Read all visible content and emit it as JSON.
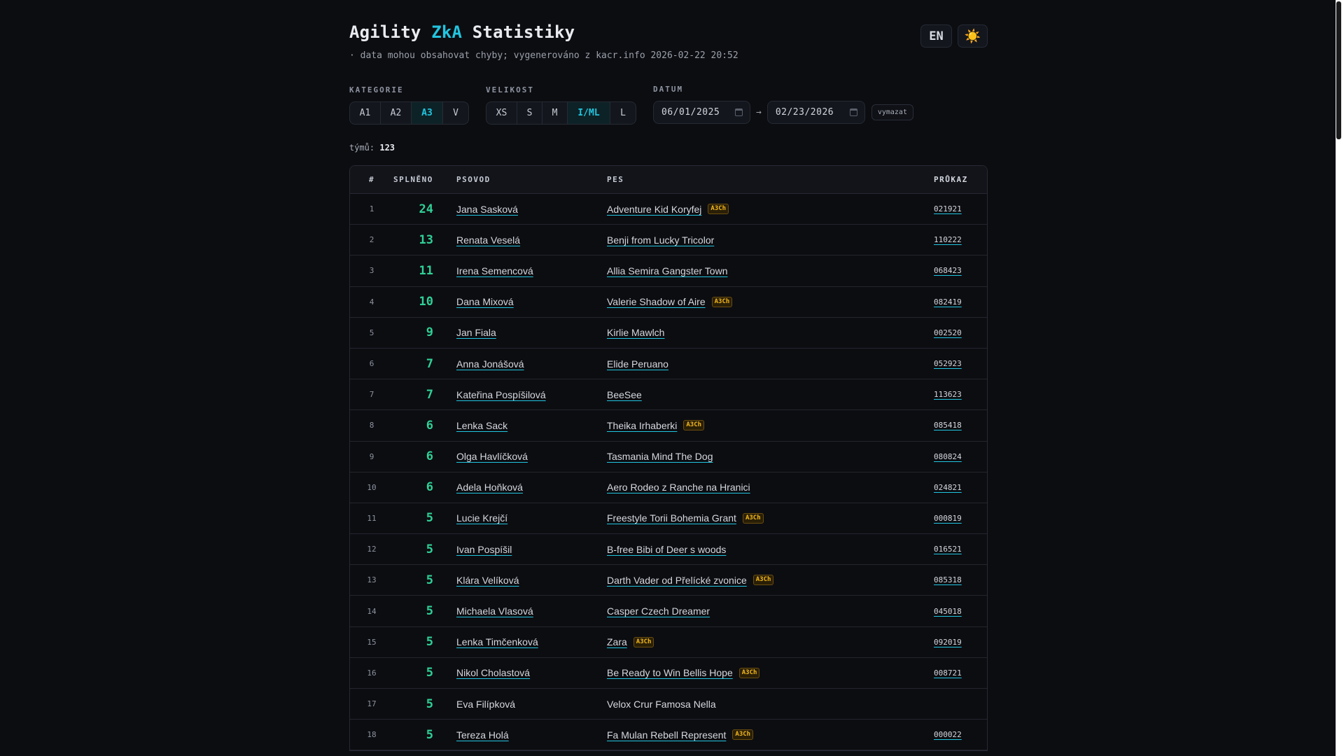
{
  "header": {
    "title_part1": "Agility ",
    "title_accent": "ZkA",
    "title_part2": " Statistiky",
    "subtitle": "· data mohou obsahovat chyby; vygenerováno z kacr.info 2026-02-22 20:52",
    "lang_button": "EN",
    "theme_icon": "☀️"
  },
  "filters": {
    "category": {
      "label": "KATEGORIE",
      "options": [
        "A1",
        "A2",
        "A3",
        "V"
      ],
      "selected": "A3"
    },
    "size": {
      "label": "VELIKOST",
      "options": [
        "XS",
        "S",
        "M",
        "I/ML",
        "L"
      ],
      "selected": "I/ML"
    },
    "date": {
      "label": "DATUM",
      "from": "06/01/2025",
      "arrow": "→",
      "to": "02/23/2026",
      "clear_label": "vymazat"
    }
  },
  "count": {
    "label": "týmů:",
    "value": "123"
  },
  "table": {
    "columns": [
      "#",
      "SPLNĚNO",
      "PSOVOD",
      "PES",
      "PRŮKAZ"
    ],
    "rows": [
      {
        "rank": "1",
        "score": "24",
        "handler": "Jana Sasková",
        "dog": "Adventure Kid Koryfej",
        "badge": "A3Ch",
        "proof": "021921",
        "linked": true
      },
      {
        "rank": "2",
        "score": "13",
        "handler": "Renata Veselá",
        "dog": "Benji from Lucky Tricolor",
        "badge": "",
        "proof": "110222",
        "linked": true
      },
      {
        "rank": "3",
        "score": "11",
        "handler": "Irena Semencová",
        "dog": "Allia Semira Gangster Town",
        "badge": "",
        "proof": "068423",
        "linked": true
      },
      {
        "rank": "4",
        "score": "10",
        "handler": "Dana Mixová",
        "dog": "Valerie Shadow of Aire",
        "badge": "A3Ch",
        "proof": "082419",
        "linked": true
      },
      {
        "rank": "5",
        "score": "9",
        "handler": "Jan Fiala",
        "dog": "Kirlie Mawlch",
        "badge": "",
        "proof": "002520",
        "linked": true
      },
      {
        "rank": "6",
        "score": "7",
        "handler": "Anna Jonášová",
        "dog": "Elide Peruano",
        "badge": "",
        "proof": "052923",
        "linked": true
      },
      {
        "rank": "7",
        "score": "7",
        "handler": "Kateřina Pospíšilová",
        "dog": "BeeSee",
        "badge": "",
        "proof": "113623",
        "linked": true
      },
      {
        "rank": "8",
        "score": "6",
        "handler": "Lenka Sack",
        "dog": "Theika Irhaberki",
        "badge": "A3Ch",
        "proof": "085418",
        "linked": true
      },
      {
        "rank": "9",
        "score": "6",
        "handler": "Olga Havlíčková",
        "dog": "Tasmania Mind The Dog",
        "badge": "",
        "proof": "080824",
        "linked": true
      },
      {
        "rank": "10",
        "score": "6",
        "handler": "Adela Hoňková",
        "dog": "Aero Rodeo z Ranche na Hranici",
        "badge": "",
        "proof": "024821",
        "linked": true
      },
      {
        "rank": "11",
        "score": "5",
        "handler": "Lucie Krejčí",
        "dog": "Freestyle Torii Bohemia Grant",
        "badge": "A3Ch",
        "proof": "000819",
        "linked": true
      },
      {
        "rank": "12",
        "score": "5",
        "handler": "Ivan Pospíšil",
        "dog": "B-free Bibi of Deer s woods",
        "badge": "",
        "proof": "016521",
        "linked": true
      },
      {
        "rank": "13",
        "score": "5",
        "handler": "Klára Velíková",
        "dog": "Darth Vader od Přelícké zvonice",
        "badge": "A3Ch",
        "proof": "085318",
        "linked": true
      },
      {
        "rank": "14",
        "score": "5",
        "handler": "Michaela Vlasová",
        "dog": "Casper Czech Dreamer",
        "badge": "",
        "proof": "045018",
        "linked": true
      },
      {
        "rank": "15",
        "score": "5",
        "handler": "Lenka Timčenková",
        "dog": "Zara",
        "badge": "A3Ch",
        "proof": "092019",
        "linked": true
      },
      {
        "rank": "16",
        "score": "5",
        "handler": "Nikol Cholastová",
        "dog": "Be Ready to Win Bellis Hope",
        "badge": "A3Ch",
        "proof": "008721",
        "linked": true
      },
      {
        "rank": "17",
        "score": "5",
        "handler": "Eva Filípková",
        "dog": "Velox Crur Famosa Nella",
        "badge": "",
        "proof": "",
        "linked": false
      },
      {
        "rank": "18",
        "score": "5",
        "handler": "Tereza Holá",
        "dog": "Fa Mulan Rebell Represent",
        "badge": "A3Ch",
        "proof": "000022",
        "linked": true
      }
    ]
  },
  "colors": {
    "background": "#0c0d11",
    "accent": "#22c5e0",
    "score": "#2fd196",
    "badge": "#f3b81c"
  }
}
